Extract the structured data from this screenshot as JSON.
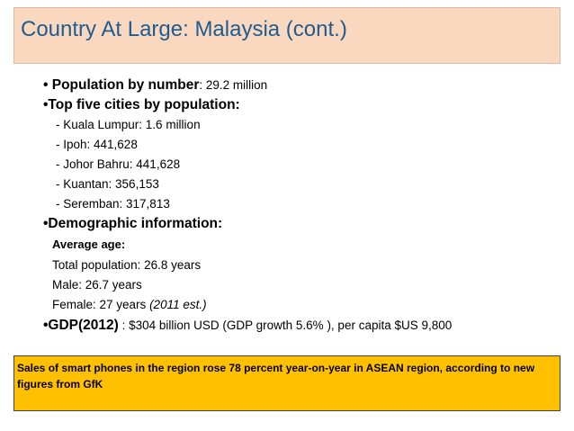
{
  "title": "Country At Large: Malaysia (cont.)",
  "population": {
    "bullet": "•",
    "label": "Population by number",
    "value": ": 29.2 million"
  },
  "cities": {
    "label": "•Top five cities by population:",
    "items": [
      "- Kuala Lumpur: 1.6 million",
      "- Ipoh: 441,628",
      "- Johor Bahru: 441,628",
      "- Kuantan: 356,153",
      "- Seremban: 317,813"
    ]
  },
  "demographics": {
    "label": "•Demographic information:",
    "average_age": "Average age:",
    "total": "Total population: 26.8 years",
    "male": "Male: 26.7 years",
    "female": "Female: 27 years",
    "female_note": "(2011 est.)"
  },
  "gdp": {
    "label": "•GDP(2012)",
    "value": " : $304 billion USD (GDP growth 5.6% ), per capita $US 9,800"
  },
  "note": "Sales of smart phones in the region rose 78 percent year-on-year in ASEAN region, according to new figures from GfK"
}
